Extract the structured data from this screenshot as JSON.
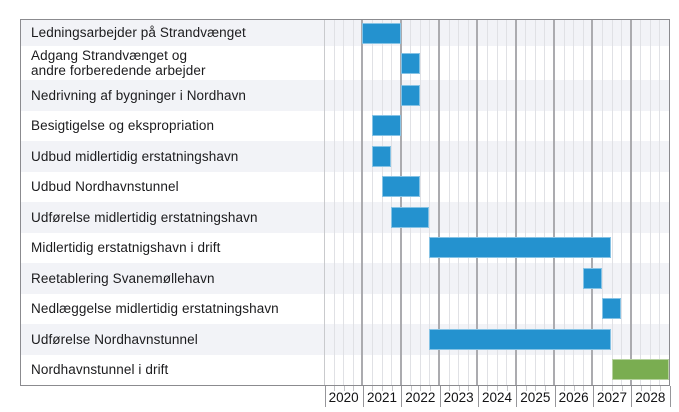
{
  "chart_data": {
    "type": "bar",
    "variant": "gantt-timeline",
    "title": "",
    "legend": "none",
    "grid": "on",
    "x_axis": {
      "range": [
        2020,
        2029
      ],
      "tick_labels": [
        "2020",
        "2021",
        "2022",
        "2023",
        "2024",
        "2025",
        "2026",
        "2027",
        "2028"
      ],
      "minor_divisions_per_year": 4
    },
    "colors": {
      "activity": "#2492cf",
      "operation": "#7aad51",
      "row_band": "#f2f3f7",
      "grid_minor": "#e0e1e5",
      "grid_major": "#ababaf",
      "border": "#8b8b8f",
      "text": "#1b1b1d"
    },
    "tasks": [
      {
        "label": "Ledningsarbejder på Strandvænget",
        "start": 2021.0,
        "end": 2022.0,
        "status": "activity"
      },
      {
        "label": "Adgang Strandvænget og\nandre forberedende arbejder",
        "start": 2022.0,
        "end": 2022.5,
        "status": "activity"
      },
      {
        "label": "Nedrivning af bygninger i Nordhavn",
        "start": 2022.0,
        "end": 2022.5,
        "status": "activity"
      },
      {
        "label": "Besigtigelse og ekspropriation",
        "start": 2021.25,
        "end": 2022.0,
        "status": "activity"
      },
      {
        "label": "Udbud midlertidig erstatningshavn",
        "start": 2021.25,
        "end": 2021.75,
        "status": "activity"
      },
      {
        "label": "Udbud Nordhavnstunnel",
        "start": 2021.5,
        "end": 2022.5,
        "status": "activity"
      },
      {
        "label": "Udførelse midlertidig erstatningshavn",
        "start": 2021.75,
        "end": 2022.75,
        "status": "activity"
      },
      {
        "label": "Midlertidig erstatnigshavn i drift",
        "start": 2022.75,
        "end": 2027.5,
        "status": "activity"
      },
      {
        "label": "Reetablering Svanemøllehavn",
        "start": 2026.75,
        "end": 2027.25,
        "status": "activity"
      },
      {
        "label": "Nedlæggelse midlertidig erstatningshavn",
        "start": 2027.25,
        "end": 2027.75,
        "status": "activity"
      },
      {
        "label": "Udførelse Nordhavnstunnel",
        "start": 2022.75,
        "end": 2027.5,
        "status": "activity"
      },
      {
        "label": "Nordhavnstunnel i drift",
        "start": 2027.5,
        "end": 2029.0,
        "status": "operation"
      }
    ]
  }
}
